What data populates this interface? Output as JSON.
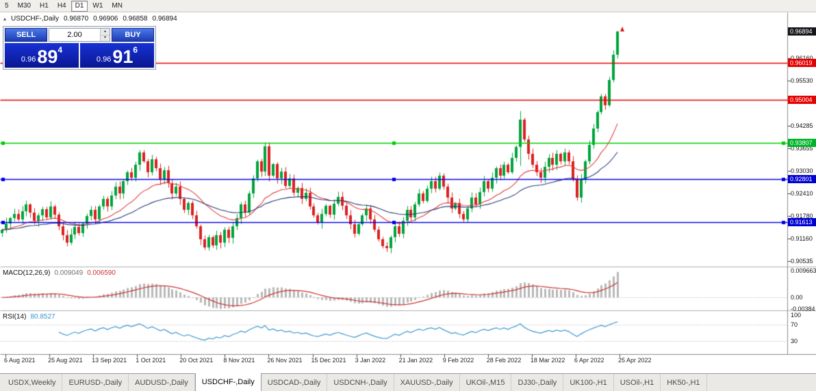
{
  "toolbar": {
    "timeframes": [
      "5",
      "M30",
      "H1",
      "H4",
      "D1",
      "W1",
      "MN"
    ],
    "active": "D1"
  },
  "chart_header": {
    "collapse_icon": "▴",
    "symbol_label": "USDCHF-,Daily",
    "open": "0.96870",
    "high": "0.96906",
    "low": "0.96858",
    "close": "0.96894"
  },
  "trade_panel": {
    "sell_label": "SELL",
    "buy_label": "BUY",
    "volume": "2.00",
    "sell_price": {
      "base": "0.96",
      "big": "89",
      "sup": "4"
    },
    "buy_price": {
      "base": "0.96",
      "big": "91",
      "sup": "6"
    }
  },
  "icons": {
    "up": "▲",
    "down": "▼"
  },
  "price_axis": {
    "ticks": [
      {
        "label": "0.96160",
        "price": 0.9616
      },
      {
        "label": "0.95530",
        "price": 0.9553
      },
      {
        "label": "0.94285",
        "price": 0.94285
      },
      {
        "label": "0.93655",
        "price": 0.93655
      },
      {
        "label": "0.93030",
        "price": 0.9303
      },
      {
        "label": "0.92410",
        "price": 0.9241
      },
      {
        "label": "0.91780",
        "price": 0.9178
      },
      {
        "label": "0.91160",
        "price": 0.9116
      },
      {
        "label": "0.90535",
        "price": 0.90535
      }
    ],
    "badges": [
      {
        "label": "0.96894",
        "price": 0.96894,
        "color": "#16171b"
      },
      {
        "label": "0.96019",
        "price": 0.96019,
        "color": "#e60000"
      },
      {
        "label": "0.95004",
        "price": 0.95004,
        "color": "#e60000"
      },
      {
        "label": "0.93807",
        "price": 0.93807,
        "color": "#00b42a"
      },
      {
        "label": "0.92801",
        "price": 0.92801,
        "color": "#0000d2"
      },
      {
        "label": "0.91613",
        "price": 0.91613,
        "color": "#0000d2"
      }
    ]
  },
  "macd": {
    "label": "MACD(12,26,9)",
    "value_main": "0.009049",
    "value_signal": "0.006590",
    "axis": [
      {
        "label": "0.009663",
        "value": 0.009663
      },
      {
        "label": "0.00",
        "value": 0
      },
      {
        "label": "-0.00384",
        "value": -0.00384
      }
    ]
  },
  "rsi": {
    "label": "RSI(14)",
    "value": "80.8527",
    "axis": [
      {
        "label": "100",
        "value": 100
      },
      {
        "label": "70",
        "value": 70
      },
      {
        "label": "30",
        "value": 30
      }
    ],
    "levels": [
      70,
      30
    ]
  },
  "x_axis": {
    "dates": [
      "6 Aug 2021",
      "25 Aug 2021",
      "13 Sep 2021",
      "1 Oct 2021",
      "20 Oct 2021",
      "8 Nov 2021",
      "26 Nov 2021",
      "15 Dec 2021",
      "3 Jan 2022",
      "21 Jan 2022",
      "9 Feb 2022",
      "28 Feb 2022",
      "18 Mar 2022",
      "6 Apr 2022",
      "25 Apr 2022"
    ]
  },
  "tabs": {
    "active": "USDCHF-,Daily",
    "items": [
      "USDX,Weekly",
      "EURUSD-,Daily",
      "AUDUSD-,Daily",
      "USDCHF-,Daily",
      "USDCAD-,Daily",
      "USDCNH-,Daily",
      "XAUUSD-,Daily",
      "UKOil-,M15",
      "DJ30-,Daily",
      "UK100-,H1",
      "USOil-,H1",
      "HK50-,H1"
    ]
  },
  "colors": {
    "up": "#00a43c",
    "down": "#dc2020",
    "ma_fast": "#e03838",
    "ma_slow": "#283878",
    "macd_hist": "#b8b8b8",
    "macd_signal": "#cf3030",
    "rsi_line": "#3a96d2",
    "arrow": "#e01010"
  },
  "chart_data": {
    "type": "candlestick",
    "symbol": "USDCHF-",
    "timeframe": "Daily",
    "first_open": 0.9132,
    "last_ohlc": {
      "open": 0.9687,
      "high": 0.96906,
      "low": 0.96858,
      "close": 0.96894
    },
    "levels": [
      {
        "price": 0.96019,
        "color": "#e60000",
        "handles": false
      },
      {
        "price": 0.95004,
        "color": "#e60000",
        "handles": false
      },
      {
        "price": 0.93807,
        "color": "#00ce00",
        "handles": true
      },
      {
        "price": 0.92801,
        "color": "#0000ee",
        "handles": true
      },
      {
        "price": 0.91613,
        "color": "#0000ee",
        "handles": true
      }
    ],
    "wick_overrides": {
      "128": [
        0.947,
        0.9318
      ],
      "152": [
        0.96906,
        0.9615
      ]
    },
    "indicators": {
      "ma_fast_period": 20,
      "ma_slow_period": 45,
      "macd": [
        12,
        26,
        9
      ],
      "rsi": 14
    },
    "closes": [
      0.914,
      0.9158,
      0.9172,
      0.9185,
      0.917,
      0.9192,
      0.921,
      0.9188,
      0.9165,
      0.918,
      0.9198,
      0.9175,
      0.9205,
      0.9182,
      0.915,
      0.9125,
      0.9105,
      0.9128,
      0.9148,
      0.9132,
      0.9158,
      0.9178,
      0.9195,
      0.917,
      0.9205,
      0.9225,
      0.9205,
      0.9235,
      0.926,
      0.924,
      0.9275,
      0.93,
      0.9285,
      0.932,
      0.9355,
      0.933,
      0.93,
      0.9335,
      0.931,
      0.928,
      0.9305,
      0.927,
      0.924,
      0.926,
      0.9225,
      0.9195,
      0.9215,
      0.918,
      0.915,
      0.9115,
      0.9092,
      0.912,
      0.9098,
      0.9125,
      0.9105,
      0.914,
      0.9118,
      0.915,
      0.9172,
      0.921,
      0.9188,
      0.924,
      0.9282,
      0.933,
      0.9302,
      0.9372,
      0.929,
      0.9322,
      0.9282,
      0.9302,
      0.9262,
      0.9282,
      0.9242,
      0.9256,
      0.9226,
      0.9242,
      0.9205,
      0.918,
      0.916,
      0.9185,
      0.9206,
      0.9182,
      0.9212,
      0.9232,
      0.9206,
      0.918,
      0.9155,
      0.913,
      0.9156,
      0.918,
      0.92,
      0.917,
      0.914,
      0.9115,
      0.9095,
      0.909,
      0.912,
      0.915,
      0.913,
      0.9165,
      0.9195,
      0.9175,
      0.921,
      0.924,
      0.922,
      0.9255,
      0.9275,
      0.9255,
      0.929,
      0.926,
      0.923,
      0.92,
      0.9215,
      0.9185,
      0.917,
      0.92,
      0.923,
      0.921,
      0.9245,
      0.9275,
      0.9255,
      0.9285,
      0.931,
      0.929,
      0.932,
      0.93,
      0.934,
      0.937,
      0.9445,
      0.939,
      0.935,
      0.932,
      0.93,
      0.9285,
      0.9315,
      0.934,
      0.932,
      0.935,
      0.933,
      0.9355,
      0.933,
      0.928,
      0.923,
      0.928,
      0.933,
      0.9375,
      0.942,
      0.9465,
      0.951,
      0.9485,
      0.9555,
      0.9625,
      0.96894
    ]
  }
}
